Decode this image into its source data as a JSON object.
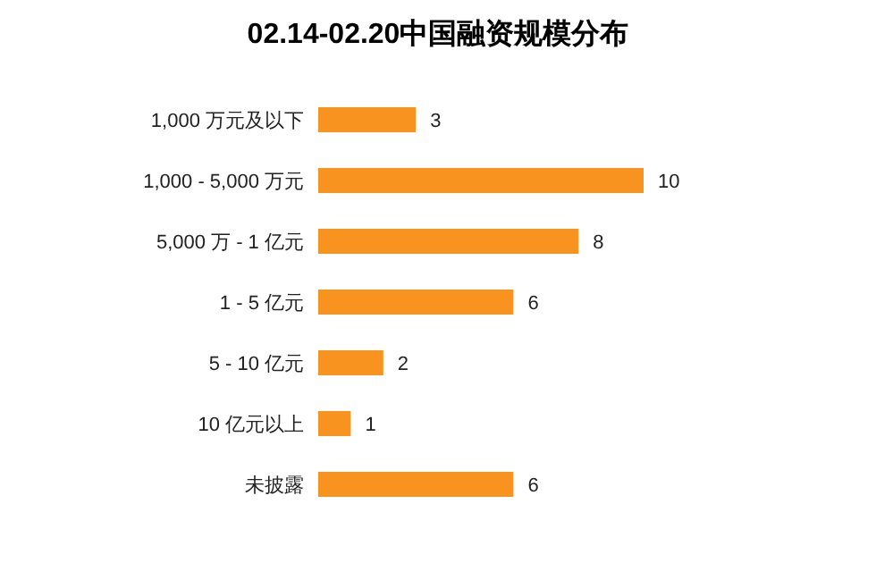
{
  "chart_data": {
    "type": "bar",
    "orientation": "horizontal",
    "title": "02.14-02.20中国融资规模分布",
    "categories": [
      "1,000 万元及以下",
      "1,000 - 5,000 万元",
      "5,000 万 - 1 亿元",
      "1 - 5 亿元",
      "5 - 10 亿元",
      "10 亿元以上",
      "未披露"
    ],
    "values": [
      3,
      10,
      8,
      6,
      2,
      1,
      6
    ],
    "color": "#f7931e",
    "data_labels": true
  }
}
